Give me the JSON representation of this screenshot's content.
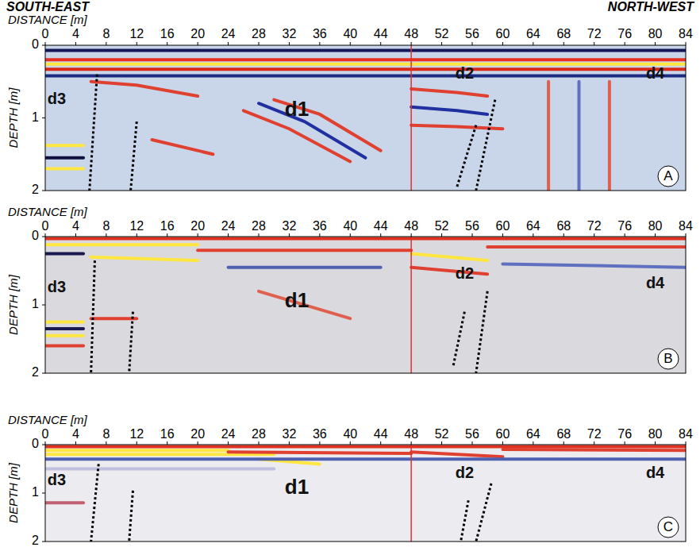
{
  "header": {
    "left": "SOUTH-EAST",
    "right": "NORTH-WEST"
  },
  "chart_data": [
    {
      "type": "radargram",
      "panel_label": "A",
      "x_label": "DISTANCE [m]",
      "y_label": "DEPTH [m]",
      "color": "#c9d6ea",
      "xlim": [
        0,
        84
      ],
      "xticks": [
        0,
        4,
        8,
        12,
        16,
        20,
        24,
        28,
        32,
        36,
        40,
        44,
        48,
        52,
        56,
        60,
        64,
        68,
        72,
        76,
        80,
        84
      ],
      "ylim": [
        0,
        2
      ],
      "yticks": [
        0,
        1,
        2
      ],
      "separator_x": 48,
      "annotations": [
        {
          "text": "d3",
          "x": 1.5,
          "y": 0.75
        },
        {
          "text": "d1",
          "x": 33,
          "y": 0.9
        },
        {
          "text": "d2",
          "x": 55,
          "y": 0.4
        },
        {
          "text": "d4",
          "x": 80,
          "y": 0.4
        }
      ],
      "boundaries": [
        {
          "x": [
            6.8,
            5.8
          ],
          "y": [
            0.4,
            2
          ]
        },
        {
          "x": [
            12,
            11.2
          ],
          "y": [
            1.05,
            2
          ]
        },
        {
          "x": [
            56.5,
            54
          ],
          "y": [
            1.1,
            1.95
          ]
        },
        {
          "x": [
            59,
            56.5
          ],
          "y": [
            0.75,
            2
          ]
        }
      ],
      "reflectors": [
        {
          "x": [
            0,
            84
          ],
          "y": [
            0.07,
            0.07
          ],
          "color": "#15155a"
        },
        {
          "x": [
            0,
            84
          ],
          "y": [
            0.2,
            0.2
          ],
          "color": "#e83020"
        },
        {
          "x": [
            0,
            84
          ],
          "y": [
            0.26,
            0.26
          ],
          "color": "#ffe640"
        },
        {
          "x": [
            0,
            84
          ],
          "y": [
            0.33,
            0.33
          ],
          "color": "#d82818"
        },
        {
          "x": [
            0,
            84
          ],
          "y": [
            0.42,
            0.42
          ],
          "color": "#1c2a80"
        },
        {
          "x": [
            0,
            5
          ],
          "y": [
            1.38,
            1.38
          ],
          "color": "#ffe640"
        },
        {
          "x": [
            0,
            5
          ],
          "y": [
            1.55,
            1.55
          ],
          "color": "#101040"
        },
        {
          "x": [
            0,
            5
          ],
          "y": [
            1.7,
            1.7
          ],
          "color": "#ffe640"
        },
        {
          "x": [
            6,
            12,
            20
          ],
          "y": [
            0.5,
            0.55,
            0.7
          ],
          "color": "#e04030"
        },
        {
          "x": [
            26,
            32,
            40
          ],
          "y": [
            0.9,
            1.15,
            1.6
          ],
          "color": "#e04030"
        },
        {
          "x": [
            28,
            34,
            42
          ],
          "y": [
            0.8,
            1.05,
            1.55
          ],
          "color": "#2030a0"
        },
        {
          "x": [
            30,
            36,
            44
          ],
          "y": [
            0.75,
            0.95,
            1.45
          ],
          "color": "#e04030"
        },
        {
          "x": [
            48,
            54,
            58
          ],
          "y": [
            0.6,
            0.65,
            0.7
          ],
          "color": "#e04030"
        },
        {
          "x": [
            48,
            54,
            58
          ],
          "y": [
            0.85,
            0.9,
            0.95
          ],
          "color": "#2030a0"
        },
        {
          "x": [
            48,
            54,
            60
          ],
          "y": [
            1.1,
            1.12,
            1.15
          ],
          "color": "#e04030"
        },
        {
          "x": [
            66,
            66
          ],
          "y": [
            0.5,
            2
          ],
          "color": "#e06050"
        },
        {
          "x": [
            70,
            70
          ],
          "y": [
            0.5,
            2
          ],
          "color": "#6070c0"
        },
        {
          "x": [
            74,
            74
          ],
          "y": [
            0.5,
            2
          ],
          "color": "#e06050"
        },
        {
          "x": [
            14,
            22
          ],
          "y": [
            1.3,
            1.5
          ],
          "color": "#e04030"
        }
      ]
    },
    {
      "type": "radargram",
      "panel_label": "B",
      "x_label": "DISTANCE [m]",
      "y_label": "DEPTH [m]",
      "color": "#d9d9de",
      "xlim": [
        0,
        84
      ],
      "xticks": [
        0,
        4,
        8,
        12,
        16,
        20,
        24,
        28,
        32,
        36,
        40,
        44,
        48,
        52,
        56,
        60,
        64,
        68,
        72,
        76,
        80,
        84
      ],
      "ylim": [
        0,
        2
      ],
      "yticks": [
        0,
        1,
        2
      ],
      "separator_x": 48,
      "annotations": [
        {
          "text": "d3",
          "x": 1.5,
          "y": 0.75
        },
        {
          "text": "d1",
          "x": 33,
          "y": 0.95
        },
        {
          "text": "d2",
          "x": 55,
          "y": 0.55
        },
        {
          "text": "d4",
          "x": 80,
          "y": 0.7
        }
      ],
      "boundaries": [
        {
          "x": [
            6.5,
            6
          ],
          "y": [
            0.35,
            2
          ]
        },
        {
          "x": [
            11.5,
            11
          ],
          "y": [
            1.1,
            2
          ]
        },
        {
          "x": [
            55,
            53.5
          ],
          "y": [
            1.1,
            1.9
          ]
        },
        {
          "x": [
            58,
            56.5
          ],
          "y": [
            0.8,
            2
          ]
        }
      ],
      "reflectors": [
        {
          "x": [
            0,
            84
          ],
          "y": [
            0.03,
            0.03
          ],
          "color": "#e03020"
        },
        {
          "x": [
            0,
            20
          ],
          "y": [
            0.12,
            0.12
          ],
          "color": "#ffe640"
        },
        {
          "x": [
            6,
            20
          ],
          "y": [
            0.3,
            0.35
          ],
          "color": "#ffe640"
        },
        {
          "x": [
            0,
            5
          ],
          "y": [
            0.25,
            0.25
          ],
          "color": "#1a1a50"
        },
        {
          "x": [
            20,
            48
          ],
          "y": [
            0.2,
            0.2
          ],
          "color": "#e04030"
        },
        {
          "x": [
            24,
            44
          ],
          "y": [
            0.45,
            0.45
          ],
          "color": "#5060b0"
        },
        {
          "x": [
            48,
            58
          ],
          "y": [
            0.25,
            0.35
          ],
          "color": "#ffe640"
        },
        {
          "x": [
            48,
            58
          ],
          "y": [
            0.45,
            0.55
          ],
          "color": "#e04030"
        },
        {
          "x": [
            58,
            84
          ],
          "y": [
            0.15,
            0.15
          ],
          "color": "#e04030"
        },
        {
          "x": [
            0,
            5
          ],
          "y": [
            1.25,
            1.25
          ],
          "color": "#ffe640"
        },
        {
          "x": [
            0,
            5
          ],
          "y": [
            1.45,
            1.45
          ],
          "color": "#ffe640"
        },
        {
          "x": [
            0,
            5
          ],
          "y": [
            1.35,
            1.35
          ],
          "color": "#1a1a50"
        },
        {
          "x": [
            0,
            5
          ],
          "y": [
            1.6,
            1.6
          ],
          "color": "#e04030"
        },
        {
          "x": [
            28,
            40
          ],
          "y": [
            0.8,
            1.2
          ],
          "color": "#e06050"
        },
        {
          "x": [
            60,
            84
          ],
          "y": [
            0.4,
            0.45
          ],
          "color": "#6070c0"
        },
        {
          "x": [
            6,
            12
          ],
          "y": [
            1.2,
            1.2
          ],
          "color": "#e04030"
        }
      ]
    },
    {
      "type": "radargram",
      "panel_label": "C",
      "x_label": "DISTANCE [m]",
      "y_label": "DEPTH [m]",
      "color": "#ececf0",
      "xlim": [
        0,
        84
      ],
      "xticks": [
        0,
        4,
        8,
        12,
        16,
        20,
        24,
        28,
        32,
        36,
        40,
        44,
        48,
        52,
        56,
        60,
        64,
        68,
        72,
        76,
        80,
        84
      ],
      "ylim": [
        0,
        2
      ],
      "yticks": [
        0,
        1,
        2
      ],
      "separator_x": 48,
      "annotations": [
        {
          "text": "d3",
          "x": 1.5,
          "y": 0.75
        },
        {
          "text": "d1",
          "x": 33,
          "y": 0.9
        },
        {
          "text": "d2",
          "x": 55,
          "y": 0.6
        },
        {
          "text": "d4",
          "x": 80,
          "y": 0.6
        }
      ],
      "boundaries": [
        {
          "x": [
            7,
            6
          ],
          "y": [
            0.4,
            2
          ]
        },
        {
          "x": [
            11.5,
            11
          ],
          "y": [
            0.95,
            2
          ]
        },
        {
          "x": [
            55.5,
            54.5
          ],
          "y": [
            1.15,
            2
          ]
        },
        {
          "x": [
            58.5,
            56.5
          ],
          "y": [
            0.8,
            2
          ]
        }
      ],
      "reflectors": [
        {
          "x": [
            0,
            84
          ],
          "y": [
            0.04,
            0.04
          ],
          "color": "#e03020"
        },
        {
          "x": [
            0,
            24
          ],
          "y": [
            0.12,
            0.12
          ],
          "color": "#ffe640"
        },
        {
          "x": [
            0,
            30
          ],
          "y": [
            0.2,
            0.2
          ],
          "color": "#ffe640"
        },
        {
          "x": [
            24,
            48
          ],
          "y": [
            0.15,
            0.18
          ],
          "color": "#e04030"
        },
        {
          "x": [
            28,
            36
          ],
          "y": [
            0.3,
            0.4
          ],
          "color": "#ffe640"
        },
        {
          "x": [
            48,
            60
          ],
          "y": [
            0.15,
            0.25
          ],
          "color": "#e04030"
        },
        {
          "x": [
            60,
            84
          ],
          "y": [
            0.1,
            0.12
          ],
          "color": "#e04030"
        },
        {
          "x": [
            0,
            84
          ],
          "y": [
            0.3,
            0.3
          ],
          "color": "#5060b0"
        },
        {
          "x": [
            0,
            5
          ],
          "y": [
            1.2,
            1.2
          ],
          "color": "#c06070"
        },
        {
          "x": [
            0,
            30
          ],
          "y": [
            0.5,
            0.5
          ],
          "color": "#c0c0e0"
        }
      ]
    }
  ]
}
